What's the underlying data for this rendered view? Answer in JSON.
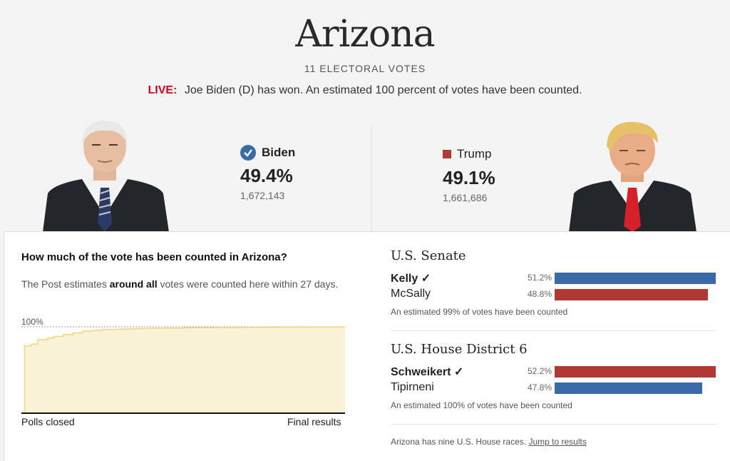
{
  "header": {
    "title": "Arizona",
    "electoral_votes": "11 ELECTORAL VOTES",
    "live_label": "LIVE:",
    "live_text": "Joe Biden (D) has won. An estimated 100 percent of votes have been counted."
  },
  "candidates": [
    {
      "name": "Biden",
      "pct": "49.4%",
      "votes": "1,672,143",
      "winner": true,
      "color": "#3a6aa8"
    },
    {
      "name": "Trump",
      "pct": "49.1%",
      "votes": "1,661,686",
      "winner": false,
      "color": "#b03a33"
    }
  ],
  "count_panel": {
    "question": "How much of the vote has been counted in Arizona?",
    "desc_prefix": "The Post estimates ",
    "desc_bold": "around all",
    "desc_suffix": " votes were counted here within 27 days.",
    "y_label": "100%",
    "x_start": "Polls closed",
    "x_end": "Final results"
  },
  "chart_data": {
    "type": "area",
    "title": "How much of the vote has been counted in Arizona?",
    "xlabel": "",
    "ylabel": "",
    "x_start_label": "Polls closed",
    "x_end_label": "Final results",
    "y_max_label": "100%",
    "ylim": [
      0,
      100
    ],
    "x": [
      0,
      1,
      3,
      5,
      8,
      10,
      13,
      16,
      19,
      22,
      25,
      30,
      35,
      40,
      50,
      60,
      70,
      80,
      90,
      100
    ],
    "values": [
      0,
      78,
      80,
      85,
      87,
      89,
      91,
      93,
      95,
      96,
      97,
      97.5,
      98,
      98.5,
      99,
      99.3,
      99.5,
      99.7,
      99.9,
      100
    ]
  },
  "races": [
    {
      "title": "U.S. Senate",
      "rows": [
        {
          "name": "Kelly",
          "winner": true,
          "pct": "51.2%",
          "value": 51.2,
          "color": "#3a6aa8"
        },
        {
          "name": "McSally",
          "winner": false,
          "pct": "48.8%",
          "value": 48.8,
          "color": "#b03a33"
        }
      ],
      "note": "An estimated 99% of votes have been counted"
    },
    {
      "title": "U.S. House District 6",
      "rows": [
        {
          "name": "Schweikert",
          "winner": true,
          "pct": "52.2%",
          "value": 52.2,
          "color": "#b03a33"
        },
        {
          "name": "Tipirneni",
          "winner": false,
          "pct": "47.8%",
          "value": 47.8,
          "color": "#3a6aa8"
        }
      ],
      "note": "An estimated 100% of votes have been counted"
    }
  ],
  "footer": {
    "text": "Arizona has nine U.S. House races.",
    "link": "Jump to results"
  }
}
